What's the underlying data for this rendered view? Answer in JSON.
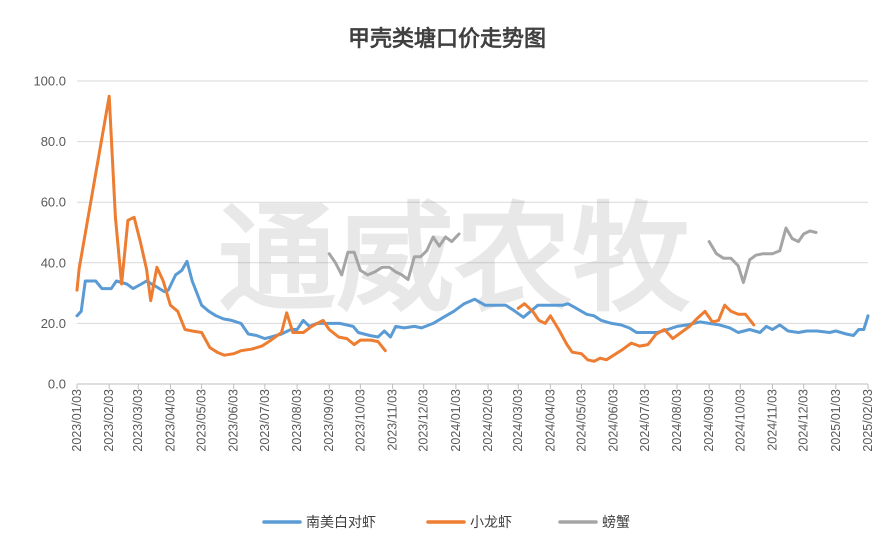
{
  "chart_data": {
    "type": "line",
    "title": "甲壳类塘口价走势图",
    "watermark": "通威农牧",
    "xlabel": "",
    "ylabel": "",
    "ylim": [
      0,
      100
    ],
    "yticks": [
      "0.0",
      "20.0",
      "40.0",
      "60.0",
      "80.0",
      "100.0"
    ],
    "xlim": [
      "2023-01-03",
      "2025-02-03"
    ],
    "xticks": [
      "2023/01/03",
      "2023/02/03",
      "2023/03/03",
      "2023/04/03",
      "2023/05/03",
      "2023/06/03",
      "2023/07/03",
      "2023/08/03",
      "2023/09/03",
      "2023/10/03",
      "2023/11/03",
      "2023/12/03",
      "2024/01/03",
      "2024/02/03",
      "2024/03/03",
      "2024/04/03",
      "2024/05/03",
      "2024/06/03",
      "2024/07/03",
      "2024/08/03",
      "2024/09/03",
      "2024/10/03",
      "2024/11/03",
      "2024/12/03",
      "2025/01/03",
      "2025/02/03"
    ],
    "grid": true,
    "legend_position": "bottom",
    "series": [
      {
        "name": "南美白对虾",
        "color": "#5B9BD5",
        "points": [
          [
            "2023-01-03",
            22.5
          ],
          [
            "2023-01-07",
            24
          ],
          [
            "2023-01-11",
            34
          ],
          [
            "2023-01-21",
            34
          ],
          [
            "2023-01-27",
            31.5
          ],
          [
            "2023-02-05",
            31.5
          ],
          [
            "2023-02-10",
            34
          ],
          [
            "2023-02-20",
            33
          ],
          [
            "2023-02-26",
            31.5
          ],
          [
            "2023-03-06",
            33
          ],
          [
            "2023-03-11",
            34
          ],
          [
            "2023-03-21",
            32
          ],
          [
            "2023-03-28",
            30.5
          ],
          [
            "2023-04-01",
            31
          ],
          [
            "2023-04-08",
            36
          ],
          [
            "2023-04-14",
            37.5
          ],
          [
            "2023-04-19",
            40.5
          ],
          [
            "2023-04-24",
            34
          ],
          [
            "2023-05-03",
            26
          ],
          [
            "2023-05-10",
            24
          ],
          [
            "2023-05-17",
            22.5
          ],
          [
            "2023-05-24",
            21.5
          ],
          [
            "2023-06-01",
            21
          ],
          [
            "2023-06-10",
            20
          ],
          [
            "2023-06-17",
            16.5
          ],
          [
            "2023-06-25",
            16
          ],
          [
            "2023-07-03",
            15
          ],
          [
            "2023-07-09",
            15.5
          ],
          [
            "2023-07-19",
            16.5
          ],
          [
            "2023-07-28",
            18
          ],
          [
            "2023-08-03",
            18
          ],
          [
            "2023-08-09",
            21
          ],
          [
            "2023-08-15",
            19
          ],
          [
            "2023-08-22",
            20
          ],
          [
            "2023-09-03",
            20
          ],
          [
            "2023-09-13",
            20
          ],
          [
            "2023-09-26",
            19
          ],
          [
            "2023-10-01",
            17
          ],
          [
            "2023-10-12",
            16
          ],
          [
            "2023-10-20",
            15.5
          ],
          [
            "2023-10-26",
            17.5
          ],
          [
            "2023-11-01",
            15.5
          ],
          [
            "2023-11-06",
            19
          ],
          [
            "2023-11-14",
            18.5
          ],
          [
            "2023-11-24",
            19
          ],
          [
            "2023-12-01",
            18.5
          ],
          [
            "2023-12-12",
            20
          ],
          [
            "2023-12-22",
            22
          ],
          [
            "2024-01-01",
            24
          ],
          [
            "2024-01-11",
            26.5
          ],
          [
            "2024-01-21",
            28
          ],
          [
            "2024-01-31",
            26
          ],
          [
            "2024-02-10",
            26
          ],
          [
            "2024-02-20",
            26
          ],
          [
            "2024-02-29",
            24
          ],
          [
            "2024-03-08",
            22
          ],
          [
            "2024-03-15",
            24
          ],
          [
            "2024-03-22",
            26
          ],
          [
            "2024-04-01",
            26
          ],
          [
            "2024-04-15",
            26
          ],
          [
            "2024-04-20",
            26.5
          ],
          [
            "2024-04-28",
            25
          ],
          [
            "2024-05-03",
            24
          ],
          [
            "2024-05-08",
            23
          ],
          [
            "2024-05-15",
            22.5
          ],
          [
            "2024-05-22",
            21
          ],
          [
            "2024-06-01",
            20
          ],
          [
            "2024-06-10",
            19.5
          ],
          [
            "2024-06-18",
            18.5
          ],
          [
            "2024-06-25",
            17
          ],
          [
            "2024-07-03",
            17
          ],
          [
            "2024-07-15",
            17
          ],
          [
            "2024-07-25",
            18
          ],
          [
            "2024-08-03",
            19
          ],
          [
            "2024-08-13",
            19.5
          ],
          [
            "2024-08-25",
            20.5
          ],
          [
            "2024-09-03",
            20
          ],
          [
            "2024-09-13",
            19.5
          ],
          [
            "2024-09-23",
            18.5
          ],
          [
            "2024-10-01",
            17
          ],
          [
            "2024-10-12",
            18
          ],
          [
            "2024-10-22",
            17
          ],
          [
            "2024-10-28",
            19
          ],
          [
            "2024-11-03",
            18
          ],
          [
            "2024-11-10",
            19.5
          ],
          [
            "2024-11-18",
            17.5
          ],
          [
            "2024-11-28",
            17
          ],
          [
            "2024-12-06",
            17.5
          ],
          [
            "2024-12-16",
            17.5
          ],
          [
            "2024-12-28",
            17
          ],
          [
            "2025-01-03",
            17.5
          ],
          [
            "2025-01-13",
            16.5
          ],
          [
            "2025-01-20",
            16
          ],
          [
            "2025-01-25",
            18
          ],
          [
            "2025-01-30",
            18
          ],
          [
            "2025-02-03",
            22.5
          ]
        ]
      },
      {
        "name": "小龙虾",
        "color": "#ED7D31",
        "points": [
          [
            "2023-01-03",
            31
          ],
          [
            "2023-01-05",
            38
          ],
          [
            "2023-02-03",
            95
          ],
          [
            "2023-02-09",
            55
          ],
          [
            "2023-02-15",
            33
          ],
          [
            "2023-02-21",
            54
          ],
          [
            "2023-02-27",
            55
          ],
          [
            "2023-03-05",
            47
          ],
          [
            "2023-03-11",
            38
          ],
          [
            "2023-03-15",
            27.5
          ],
          [
            "2023-03-21",
            38.5
          ],
          [
            "2023-03-27",
            34
          ],
          [
            "2023-04-03",
            26
          ],
          [
            "2023-04-10",
            24
          ],
          [
            "2023-04-17",
            18
          ],
          [
            "2023-04-24",
            17.5
          ],
          [
            "2023-05-03",
            17
          ],
          [
            "2023-05-11",
            12
          ],
          [
            "2023-05-18",
            10.5
          ],
          [
            "2023-05-25",
            9.5
          ],
          [
            "2023-06-03",
            10
          ],
          [
            "2023-06-10",
            11
          ],
          [
            "2023-06-20",
            11.5
          ],
          [
            "2023-06-30",
            12.5
          ],
          [
            "2023-07-09",
            14.5
          ],
          [
            "2023-07-19",
            17
          ],
          [
            "2023-07-24",
            23.5
          ],
          [
            "2023-07-30",
            17
          ],
          [
            "2023-08-09",
            17
          ],
          [
            "2023-08-17",
            19
          ],
          [
            "2023-08-28",
            21
          ],
          [
            "2023-09-03",
            18
          ],
          [
            "2023-09-12",
            15.5
          ],
          [
            "2023-09-20",
            15
          ],
          [
            "2023-09-27",
            13
          ],
          [
            "2023-10-03",
            14.5
          ],
          [
            "2023-10-13",
            14.5
          ],
          [
            "2023-10-20",
            14
          ],
          [
            "2023-10-27",
            11
          ],
          null,
          [
            "2024-03-03",
            25
          ],
          [
            "2024-03-09",
            26.5
          ],
          [
            "2024-03-17",
            24
          ],
          [
            "2024-03-23",
            21
          ],
          [
            "2024-03-29",
            20
          ],
          [
            "2024-04-03",
            22.5
          ],
          [
            "2024-04-11",
            18
          ],
          [
            "2024-04-19",
            13
          ],
          [
            "2024-04-24",
            10.5
          ],
          [
            "2024-05-03",
            10
          ],
          [
            "2024-05-09",
            8
          ],
          [
            "2024-05-15",
            7.5
          ],
          [
            "2024-05-21",
            8.5
          ],
          [
            "2024-05-27",
            8
          ],
          [
            "2024-06-03",
            9.5
          ],
          [
            "2024-06-12",
            11.5
          ],
          [
            "2024-06-20",
            13.5
          ],
          [
            "2024-06-28",
            12.5
          ],
          [
            "2024-07-06",
            13
          ],
          [
            "2024-07-14",
            16.5
          ],
          [
            "2024-07-22",
            18
          ],
          [
            "2024-07-30",
            15
          ],
          [
            "2024-08-07",
            17
          ],
          [
            "2024-08-15",
            19
          ],
          [
            "2024-08-22",
            21.5
          ],
          [
            "2024-08-30",
            24
          ],
          [
            "2024-09-06",
            20.5
          ],
          [
            "2024-09-12",
            21
          ],
          [
            "2024-09-18",
            26
          ],
          [
            "2024-09-24",
            24
          ],
          [
            "2024-10-01",
            23
          ],
          [
            "2024-10-08",
            23
          ],
          [
            "2024-10-16",
            19.5
          ]
        ]
      },
      {
        "name": "螃蟹",
        "color": "#A5A5A5",
        "points": [
          [
            "2023-09-03",
            43
          ],
          [
            "2023-09-09",
            40
          ],
          [
            "2023-09-15",
            36
          ],
          [
            "2023-09-21",
            43.5
          ],
          [
            "2023-09-27",
            43.5
          ],
          [
            "2023-10-03",
            37.5
          ],
          [
            "2023-10-10",
            36
          ],
          [
            "2023-10-17",
            37
          ],
          [
            "2023-10-24",
            38.5
          ],
          [
            "2023-10-31",
            38.5
          ],
          [
            "2023-11-06",
            37
          ],
          [
            "2023-11-12",
            36
          ],
          [
            "2023-11-18",
            34.5
          ],
          [
            "2023-11-24",
            42
          ],
          [
            "2023-11-30",
            42
          ],
          [
            "2023-12-06",
            44
          ],
          [
            "2023-12-12",
            48.5
          ],
          [
            "2023-12-18",
            45.5
          ],
          [
            "2023-12-24",
            48.5
          ],
          [
            "2023-12-30",
            47
          ],
          [
            "2024-01-06",
            49.5
          ],
          null,
          [
            "2024-09-03",
            47
          ],
          [
            "2024-09-10",
            43
          ],
          [
            "2024-09-17",
            41.5
          ],
          [
            "2024-09-24",
            41.5
          ],
          [
            "2024-10-01",
            39
          ],
          [
            "2024-10-06",
            33.5
          ],
          [
            "2024-10-12",
            41
          ],
          [
            "2024-10-18",
            42.5
          ],
          [
            "2024-10-25",
            43
          ],
          [
            "2024-11-03",
            43
          ],
          [
            "2024-11-10",
            44
          ],
          [
            "2024-11-16",
            51.5
          ],
          [
            "2024-11-22",
            48
          ],
          [
            "2024-11-28",
            47
          ],
          [
            "2024-12-03",
            49.5
          ],
          [
            "2024-12-09",
            50.5
          ],
          [
            "2024-12-15",
            50
          ]
        ]
      }
    ]
  }
}
